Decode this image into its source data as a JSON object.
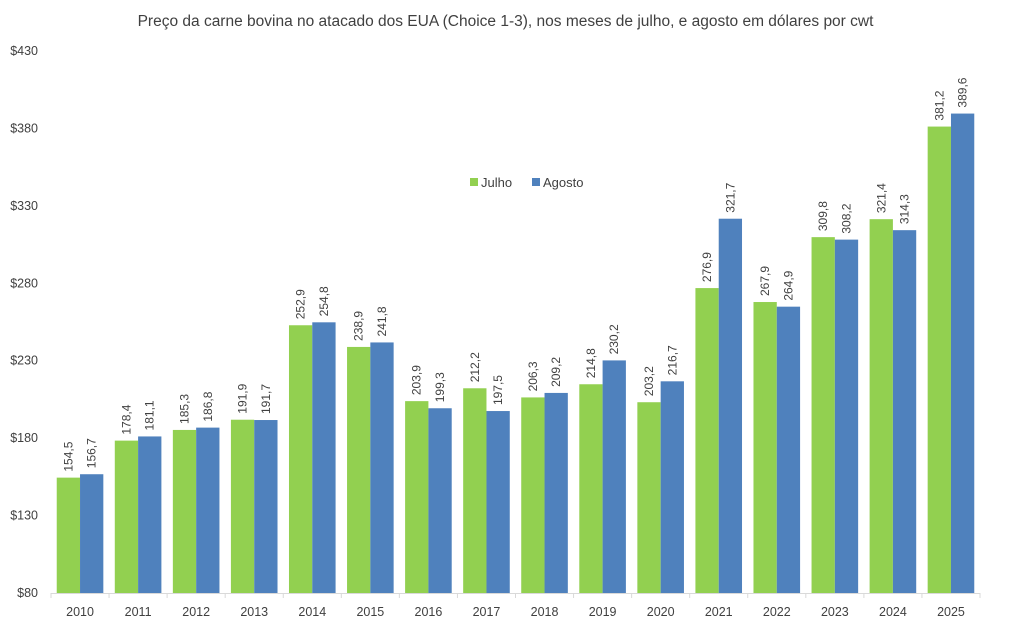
{
  "chart_data": {
    "type": "bar",
    "title": "Preço da carne bovina no atacado dos EUA (Choice 1-3), nos meses de julho, e agosto em dólares por cwt",
    "categories": [
      "2010",
      "2011",
      "2012",
      "2013",
      "2014",
      "2015",
      "2016",
      "2017",
      "2018",
      "2019",
      "2020",
      "2021",
      "2022",
      "2023",
      "2024",
      "2025"
    ],
    "series": [
      {
        "name": "Julho",
        "color": "#92D050",
        "values": [
          154.5,
          178.4,
          185.3,
          191.9,
          252.9,
          238.9,
          203.9,
          212.2,
          206.3,
          214.8,
          203.2,
          276.9,
          267.9,
          309.8,
          321.4,
          381.2
        ],
        "labels": [
          "154,5",
          "178,4",
          "185,3",
          "191,9",
          "252,9",
          "238,9",
          "203,9",
          "212,2",
          "206,3",
          "214,8",
          "203,2",
          "276,9",
          "267,9",
          "309,8",
          "321,4",
          "381,2"
        ]
      },
      {
        "name": "Agosto",
        "color": "#4F81BD",
        "values": [
          156.7,
          181.1,
          186.8,
          191.7,
          254.8,
          241.8,
          199.3,
          197.5,
          209.2,
          230.2,
          216.7,
          321.7,
          264.9,
          308.2,
          314.3,
          389.6
        ],
        "labels": [
          "156,7",
          "181,1",
          "186,8",
          "191,7",
          "254,8",
          "241,8",
          "199,3",
          "197,5",
          "209,2",
          "230,2",
          "216,7",
          "321,7",
          "264,9",
          "308,2",
          "314,3",
          "389,6"
        ]
      }
    ],
    "ylim": [
      80,
      430
    ],
    "yticks": [
      80,
      130,
      180,
      230,
      280,
      330,
      380,
      430
    ],
    "ytick_labels": [
      "$80",
      "$130",
      "$180",
      "$230",
      "$280",
      "$330",
      "$380",
      "$430"
    ],
    "xlabel": "",
    "ylabel": "",
    "legend_position": "inside-top-center",
    "grid": false
  }
}
